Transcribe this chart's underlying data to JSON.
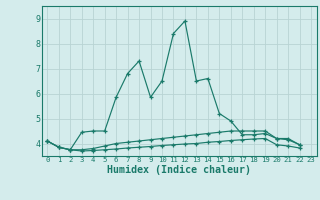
{
  "title": "",
  "xlabel": "Humidex (Indice chaleur)",
  "bg_color": "#d4ecec",
  "grid_color": "#b8d4d4",
  "line_color": "#1a7a6a",
  "x_values": [
    0,
    1,
    2,
    3,
    4,
    5,
    6,
    7,
    8,
    9,
    10,
    11,
    12,
    13,
    14,
    15,
    16,
    17,
    18,
    19,
    20,
    21,
    22,
    23
  ],
  "line1": [
    4.1,
    3.85,
    3.75,
    4.45,
    4.5,
    4.5,
    5.85,
    6.8,
    7.3,
    5.85,
    6.5,
    8.4,
    8.9,
    6.5,
    6.6,
    5.2,
    4.9,
    4.35,
    4.35,
    4.4,
    4.2,
    4.2,
    3.95,
    null
  ],
  "line2": [
    4.1,
    3.85,
    3.75,
    3.75,
    3.8,
    3.9,
    4.0,
    4.05,
    4.1,
    4.15,
    4.2,
    4.25,
    4.3,
    4.35,
    4.4,
    4.45,
    4.5,
    4.5,
    4.5,
    4.5,
    4.2,
    4.15,
    3.95,
    null
  ],
  "line3": [
    4.1,
    3.85,
    3.75,
    3.7,
    3.72,
    3.75,
    3.78,
    3.82,
    3.85,
    3.88,
    3.92,
    3.95,
    3.98,
    4.0,
    4.05,
    4.08,
    4.12,
    4.15,
    4.18,
    4.2,
    3.95,
    3.9,
    3.82,
    null
  ],
  "ylim": [
    3.5,
    9.5
  ],
  "xlim": [
    -0.5,
    23.5
  ],
  "yticks": [
    4,
    5,
    6,
    7,
    8,
    9
  ],
  "xticks": [
    0,
    1,
    2,
    3,
    4,
    5,
    6,
    7,
    8,
    9,
    10,
    11,
    12,
    13,
    14,
    15,
    16,
    17,
    18,
    19,
    20,
    21,
    22,
    23
  ]
}
